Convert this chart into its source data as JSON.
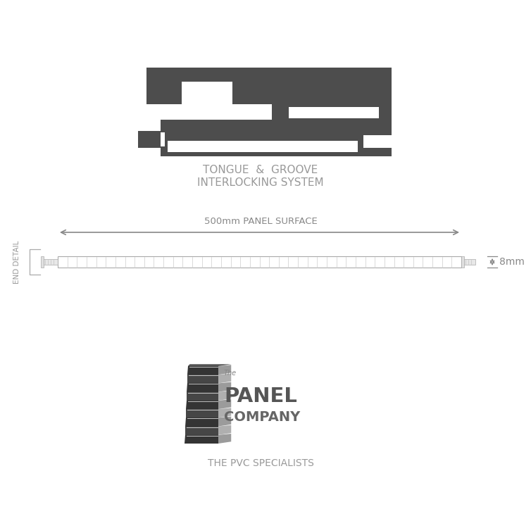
{
  "bg_color": "#ffffff",
  "dark_gray": "#4a4a4a",
  "mid_gray": "#888888",
  "panel_gray": "#999999",
  "line_color": "#aaaaaa",
  "title1": "TONGUE  &  GROOVE",
  "title2": "INTERLOCKING SYSTEM",
  "dim_label": "500mm PANEL SURFACE",
  "thickness_label": "8mm",
  "end_detail_label": "END DETAIL",
  "tagline": "THE PVC SPECIALISTS",
  "logo_text_the": "The",
  "logo_text_panel": "PANEL",
  "logo_text_company": "COMPANY"
}
